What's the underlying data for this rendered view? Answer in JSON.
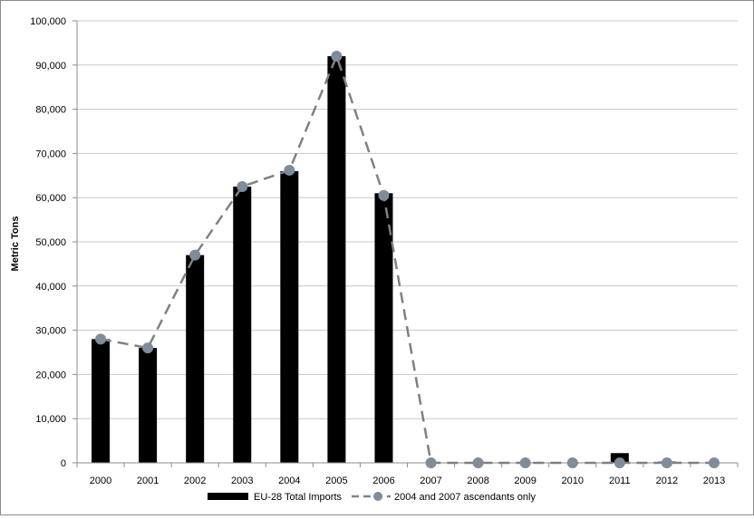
{
  "chart_data": {
    "type": "bar",
    "title": "",
    "xlabel": "",
    "ylabel": "Metric Tons",
    "ylim": [
      0,
      100000
    ],
    "ytick_step": 10000,
    "yticks": [
      "0",
      "10,000",
      "20,000",
      "30,000",
      "40,000",
      "50,000",
      "60,000",
      "70,000",
      "80,000",
      "90,000",
      "100,000"
    ],
    "grid": true,
    "legend_position": "bottom",
    "categories": [
      "2000",
      "2001",
      "2002",
      "2003",
      "2004",
      "2005",
      "2006",
      "2007",
      "2008",
      "2009",
      "2010",
      "2011",
      "2012",
      "2013"
    ],
    "series": [
      {
        "name": "EU-28 Total Imports",
        "type": "bar",
        "color": "#000000",
        "values": [
          28000,
          26000,
          47000,
          62500,
          66000,
          92000,
          61000,
          0,
          0,
          0,
          0,
          2200,
          300,
          100
        ]
      },
      {
        "name": "2004 and 2007 ascendants only",
        "type": "line",
        "color": "#808080",
        "marker_color": "#7f8c99",
        "line_style": "dashed",
        "values": [
          28000,
          26000,
          47000,
          62500,
          66200,
          92000,
          60500,
          0,
          0,
          0,
          0,
          0,
          0,
          0
        ]
      }
    ]
  }
}
